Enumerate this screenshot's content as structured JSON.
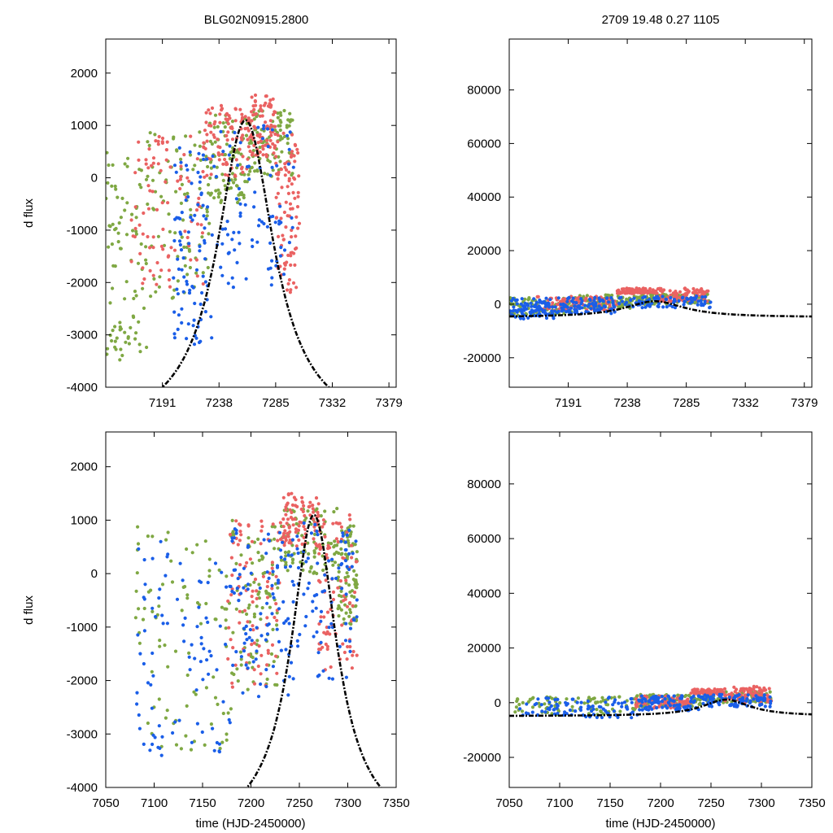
{
  "figure": {
    "title_left": "BLG02N0915.2800",
    "title_right": "2709  19.48  0.27  1105",
    "ylabel": "d flux",
    "xlabel": "time (HJD-2450000)"
  },
  "colors": {
    "blue": "#1a5ee8",
    "green": "#7fa843",
    "red": "#ea6262",
    "model": "#000000"
  },
  "chart_data": [
    {
      "id": "top-left",
      "type": "scatter",
      "xlim": [
        7144,
        7385
      ],
      "ylim": [
        -4000,
        2650
      ],
      "xticks": [
        7191,
        7238,
        7285,
        7332,
        7379
      ],
      "yticks": [
        -4000,
        -3000,
        -2000,
        -1000,
        0,
        1000,
        2000
      ],
      "model": {
        "t0": 7260,
        "peak": 1100,
        "base": -4900,
        "width": 29
      },
      "series": [
        {
          "name": "green",
          "segments": [
            [
              7144,
              7178,
              -3500,
              500
            ],
            [
              7178,
              7230,
              -2300,
              900
            ],
            [
              7230,
              7262,
              -500,
              1200
            ],
            [
              7262,
              7300,
              0,
              1300
            ]
          ]
        },
        {
          "name": "red",
          "segments": [
            [
              7165,
              7225,
              -2100,
              900
            ],
            [
              7225,
              7262,
              0,
              1400
            ],
            [
              7262,
              7285,
              400,
              1600
            ],
            [
              7285,
              7305,
              -2200,
              900
            ]
          ]
        },
        {
          "name": "blue",
          "segments": [
            [
              7200,
              7232,
              -3200,
              600
            ],
            [
              7232,
              7300,
              -2400,
              1000
            ]
          ]
        }
      ]
    },
    {
      "id": "top-right",
      "type": "scatter",
      "xlim": [
        7144,
        7385
      ],
      "ylim": [
        -31000,
        99000
      ],
      "xticks": [
        7191,
        7238,
        7285,
        7332,
        7379
      ],
      "yticks": [
        -20000,
        0,
        20000,
        40000,
        60000,
        80000
      ],
      "model": {
        "t0": 7260,
        "peak": 1100,
        "base": -4900,
        "width": 29
      },
      "series": [
        {
          "name": "green",
          "segments": [
            [
              7144,
              7200,
              -4200,
              2500
            ],
            [
              7200,
              7250,
              -1500,
              3500
            ],
            [
              7250,
              7305,
              0,
              4000
            ]
          ]
        },
        {
          "name": "red",
          "segments": [
            [
              7165,
              7230,
              -2500,
              3000
            ],
            [
              7230,
              7262,
              4000,
              6000
            ],
            [
              7262,
              7305,
              1000,
              6000
            ]
          ]
        },
        {
          "name": "blue",
          "segments": [
            [
              7144,
              7180,
              -5500,
              2200
            ],
            [
              7180,
              7230,
              -3500,
              2500
            ],
            [
              7230,
              7305,
              -1500,
              3000
            ]
          ]
        }
      ]
    },
    {
      "id": "bottom-left",
      "type": "scatter",
      "xlim": [
        7050,
        7350
      ],
      "ylim": [
        -4000,
        2650
      ],
      "xticks": [
        7050,
        7100,
        7150,
        7200,
        7250,
        7300,
        7350
      ],
      "yticks": [
        -4000,
        -3000,
        -2000,
        -1000,
        0,
        1000,
        2000
      ],
      "model": {
        "t0": 7265,
        "peak": 1100,
        "base": -4900,
        "width": 29
      },
      "series": [
        {
          "name": "green",
          "segments": [
            [
              7080,
              7180,
              -3300,
              900
            ],
            [
              7180,
              7230,
              -2200,
              1000
            ],
            [
              7230,
              7290,
              0,
              1300
            ],
            [
              7290,
              7310,
              -1000,
              900
            ]
          ]
        },
        {
          "name": "red",
          "segments": [
            [
              7175,
              7230,
              -2200,
              1000
            ],
            [
              7230,
              7270,
              500,
              1500
            ],
            [
              7270,
              7310,
              -1800,
              1100
            ]
          ]
        },
        {
          "name": "blue",
          "segments": [
            [
              7080,
              7180,
              -3500,
              600
            ],
            [
              7180,
              7240,
              -2400,
              900
            ],
            [
              7240,
              7310,
              -2000,
              1000
            ]
          ]
        }
      ]
    },
    {
      "id": "bottom-right",
      "type": "scatter",
      "xlim": [
        7050,
        7350
      ],
      "ylim": [
        -31000,
        99000
      ],
      "xticks": [
        7050,
        7100,
        7150,
        7200,
        7250,
        7300,
        7350
      ],
      "yticks": [
        -20000,
        0,
        20000,
        40000,
        60000,
        80000
      ],
      "model": {
        "t0": 7265,
        "peak": 1100,
        "base": -4900,
        "width": 29
      },
      "series": [
        {
          "name": "green",
          "segments": [
            [
              7055,
              7175,
              -4500,
              2200
            ],
            [
              7175,
              7240,
              -1500,
              3000
            ],
            [
              7240,
              7310,
              0,
              4000
            ]
          ]
        },
        {
          "name": "red",
          "segments": [
            [
              7175,
              7230,
              -2000,
              2500
            ],
            [
              7230,
              7262,
              3000,
              5000
            ],
            [
              7262,
              7310,
              0,
              6000
            ]
          ]
        },
        {
          "name": "blue",
          "segments": [
            [
              7060,
              7180,
              -5500,
              2200
            ],
            [
              7180,
              7240,
              -3000,
              2500
            ],
            [
              7240,
              7310,
              -1500,
              3000
            ]
          ]
        }
      ]
    }
  ]
}
